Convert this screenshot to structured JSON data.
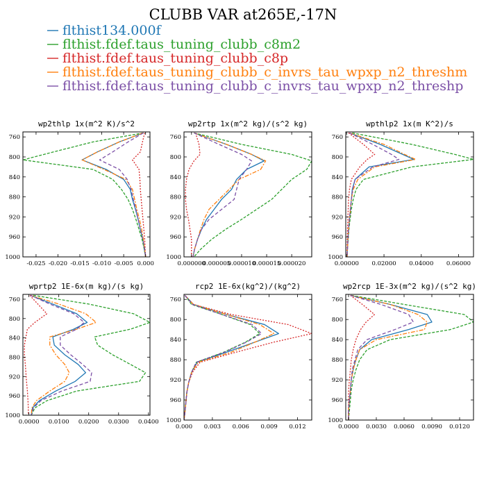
{
  "figure": {
    "title": "CLUBB VAR at265E,-17N"
  },
  "legend": [
    {
      "name": "flthist134.000f",
      "color": "#1f77b4"
    },
    {
      "name": "flthist.fdef.taus_tuning_clubb_c8m2",
      "color": "#2ca02c"
    },
    {
      "name": "flthist.fdef.taus_tuning_clubb_c8p",
      "color": "#d62728"
    },
    {
      "name": "flthist.fdef.taus_tuning_clubb_c_invrs_tau_wpxp_n2_threshm",
      "color": "#ff7f0e"
    },
    {
      "name": "flthist.fdef.taus_tuning_clubb_c_invrs_tau_wpxp_n2_threshp",
      "color": "#7b4fa6"
    }
  ],
  "chart_data": [
    {
      "type": "line",
      "title": "wp2thlp  1x(m^2 K)/s^2",
      "xlim": [
        -0.028,
        0.001
      ],
      "xticks": [
        -0.025,
        -0.02,
        -0.015,
        -0.01,
        -0.005,
        0.0
      ],
      "xtick_labels": [
        "-0.025",
        "-0.020",
        "-0.015",
        "-0.010",
        "-0.005",
        "0.000"
      ],
      "ylim": [
        1000,
        750
      ],
      "yticks": [
        760,
        800,
        840,
        880,
        920,
        960,
        1000
      ],
      "y": [
        752,
        770,
        790,
        806,
        825,
        845,
        865,
        885,
        905,
        925,
        945,
        965,
        985,
        1000
      ],
      "series": [
        {
          "values": [
            -0.0005,
            -0.006,
            -0.011,
            -0.0145,
            -0.009,
            -0.005,
            -0.0035,
            -0.003,
            -0.0023,
            -0.0017,
            -0.0012,
            -0.0006,
            -0.0003,
            0.0
          ]
        },
        {
          "values": [
            -0.0005,
            -0.012,
            -0.021,
            -0.028,
            -0.012,
            -0.0075,
            -0.0055,
            -0.004,
            -0.003,
            -0.0022,
            -0.0015,
            -0.0008,
            -0.0003,
            0.0
          ]
        },
        {
          "values": [
            -0.0002,
            -0.0007,
            -0.0012,
            -0.003,
            -0.0015,
            -0.0013,
            -0.0012,
            -0.001,
            -0.0008,
            -0.0006,
            -0.0004,
            -0.0002,
            -0.0001,
            0.0
          ]
        },
        {
          "values": [
            -0.0006,
            -0.006,
            -0.011,
            -0.0145,
            -0.0095,
            -0.0045,
            -0.003,
            -0.0025,
            -0.002,
            -0.0014,
            -0.0009,
            -0.0005,
            -0.0002,
            0.0
          ]
        },
        {
          "values": [
            -0.0005,
            -0.004,
            -0.0075,
            -0.0105,
            -0.006,
            -0.0042,
            -0.0033,
            -0.0028,
            -0.0022,
            -0.0017,
            -0.0012,
            -0.0006,
            -0.0002,
            0.0
          ]
        }
      ]
    },
    {
      "type": "line",
      "title": "wp2rtp  1x(m^2 kg)/(s^2 kg)",
      "xlim": [
        -1.5e-06,
        2.4e-05
      ],
      "xticks": [
        0.0,
        5e-06,
        1e-05,
        1.5e-05,
        2e-05
      ],
      "xtick_labels": [
        "0.000000",
        "0.000005",
        "0.000010",
        "0.000015",
        "0.000020"
      ],
      "ylim": [
        1000,
        750
      ],
      "yticks": [
        760,
        800,
        840,
        880,
        920,
        960,
        1000
      ],
      "y": [
        752,
        775,
        795,
        808,
        825,
        845,
        865,
        885,
        905,
        925,
        945,
        965,
        985,
        1000
      ],
      "series": [
        {
          "values": [
            5e-07,
            7e-06,
            1.2e-05,
            1.45e-05,
            1.1e-05,
            9e-06,
            8e-06,
            6e-06,
            4.5e-06,
            3e-06,
            2e-06,
            1.2e-06,
            6e-07,
            3e-07
          ]
        },
        {
          "values": [
            5e-07,
            1e-05,
            2e-05,
            2.4e-05,
            2.3e-05,
            2e-05,
            1.8e-05,
            1.6e-05,
            1.3e-05,
            1e-05,
            6.8e-06,
            4e-06,
            1.8e-06,
            5e-07
          ]
        },
        {
          "values": [
            8e-07,
            1.5e-06,
            1.7e-06,
            5e-07,
            -5e-07,
            -1e-06,
            -1.2e-06,
            -1.2e-06,
            -1e-06,
            -6e-07,
            -3e-07,
            0.0,
            0.0,
            0.0
          ]
        },
        {
          "values": [
            5e-07,
            7e-06,
            1.2e-05,
            1.48e-05,
            1.38e-05,
            9.5e-06,
            7.5e-06,
            5.5e-06,
            3.5e-06,
            2.5e-06,
            1.8e-06,
            1.2e-06,
            6e-07,
            3e-07
          ]
        },
        {
          "values": [
            5e-07,
            5.5e-06,
            1e-05,
            1.2e-05,
            1.1e-05,
            9.5e-06,
            9e-06,
            8.5e-06,
            6e-06,
            3.5e-06,
            2e-06,
            1.2e-06,
            6e-07,
            3e-07
          ]
        }
      ]
    },
    {
      "type": "line",
      "title": "wpthlp2  1x(m K^2)/s",
      "xlim": [
        -0.0005,
        0.068
      ],
      "xticks": [
        0.0,
        0.02,
        0.04,
        0.06
      ],
      "xtick_labels": [
        "0.00000",
        "0.02000",
        "0.04000",
        "0.06000"
      ],
      "ylim": [
        1000,
        750
      ],
      "yticks": [
        760,
        800,
        840,
        880,
        920,
        960,
        1000
      ],
      "y": [
        752,
        775,
        795,
        805,
        820,
        845,
        865,
        885,
        905,
        925,
        945,
        965,
        985,
        1000
      ],
      "series": [
        {
          "values": [
            0.0015,
            0.018,
            0.03,
            0.036,
            0.012,
            0.0045,
            0.003,
            0.0025,
            0.002,
            0.0015,
            0.001,
            0.0007,
            0.0004,
            0.0002
          ]
        },
        {
          "values": [
            0.003,
            0.035,
            0.058,
            0.068,
            0.035,
            0.009,
            0.005,
            0.0035,
            0.0025,
            0.0018,
            0.0012,
            0.0008,
            0.0004,
            0.0002
          ]
        },
        {
          "values": [
            0.001,
            0.009,
            0.015,
            0.011,
            0.007,
            0.0025,
            0.0015,
            0.001,
            0.0008,
            0.0006,
            0.0004,
            0.0003,
            0.0002,
            0.0001
          ]
        },
        {
          "values": [
            0.0015,
            0.02,
            0.031,
            0.037,
            0.015,
            0.006,
            0.0035,
            0.0025,
            0.002,
            0.0014,
            0.001,
            0.0007,
            0.0004,
            0.0002
          ]
        },
        {
          "values": [
            0.0015,
            0.014,
            0.024,
            0.028,
            0.014,
            0.0045,
            0.0032,
            0.0025,
            0.002,
            0.0014,
            0.001,
            0.0007,
            0.0004,
            0.0002
          ]
        }
      ]
    },
    {
      "type": "line",
      "title": "wprtp2  1E-6x(m kg)/(s kg)",
      "xlim": [
        -0.002,
        0.0405
      ],
      "xticks": [
        0.0,
        0.01,
        0.02,
        0.03,
        0.04
      ],
      "xtick_labels": [
        "0.0000",
        "0.0100",
        "0.0200",
        "0.0300",
        "0.0400"
      ],
      "ylim": [
        1000,
        750
      ],
      "yticks": [
        760,
        800,
        840,
        880,
        920,
        960,
        1000
      ],
      "y": [
        752,
        770,
        790,
        808,
        822,
        838,
        855,
        875,
        895,
        912,
        930,
        950,
        970,
        985,
        1000
      ],
      "series": [
        {
          "values": [
            0.0005,
            0.008,
            0.016,
            0.0195,
            0.015,
            0.008,
            0.0085,
            0.012,
            0.0165,
            0.019,
            0.0155,
            0.009,
            0.0035,
            0.0012,
            0.0008
          ]
        },
        {
          "values": [
            0.0015,
            0.02,
            0.035,
            0.0405,
            0.034,
            0.022,
            0.023,
            0.028,
            0.034,
            0.039,
            0.037,
            0.016,
            0.006,
            0.002,
            0.0008
          ]
        },
        {
          "values": [
            0.0003,
            0.003,
            0.006,
            0.002,
            -0.0005,
            -0.001,
            -0.0015,
            -0.0015,
            -0.0012,
            -0.001,
            -0.0008,
            -0.0005,
            -0.0003,
            -0.0002,
            -0.0002
          ]
        },
        {
          "values": [
            0.0005,
            0.01,
            0.019,
            0.0225,
            0.016,
            0.007,
            0.007,
            0.009,
            0.012,
            0.0135,
            0.012,
            0.007,
            0.0025,
            0.001,
            0.0008
          ]
        },
        {
          "values": [
            0.0005,
            0.007,
            0.015,
            0.0185,
            0.016,
            0.0105,
            0.0105,
            0.014,
            0.018,
            0.021,
            0.0205,
            0.011,
            0.004,
            0.0015,
            0.0008
          ]
        }
      ]
    },
    {
      "type": "line",
      "title": "rcp2  1E-6x(kg^2)/(kg^2)",
      "xlim": [
        0.0,
        0.0135
      ],
      "xticks": [
        0.0,
        0.003,
        0.006,
        0.009,
        0.012
      ],
      "xtick_labels": [
        "0.000",
        "0.003",
        "0.006",
        "0.009",
        "0.012"
      ],
      "ylim": [
        1000,
        750
      ],
      "yticks": [
        760,
        800,
        840,
        880,
        920,
        960,
        1000
      ],
      "y": [
        752,
        770,
        790,
        810,
        828,
        845,
        865,
        885,
        905,
        925,
        945,
        965,
        985,
        1000
      ],
      "series": [
        {
          "values": [
            0.0001,
            0.001,
            0.0045,
            0.0085,
            0.01,
            0.0075,
            0.0045,
            0.0014,
            0.0008,
            0.0005,
            0.0003,
            0.0002,
            0.0001,
            0.0
          ]
        },
        {
          "values": [
            0.0001,
            0.0008,
            0.004,
            0.007,
            0.008,
            0.0065,
            0.0042,
            0.0013,
            0.0008,
            0.0005,
            0.0003,
            0.0002,
            0.0001,
            0.0
          ]
        },
        {
          "values": [
            0.0001,
            0.001,
            0.005,
            0.011,
            0.0135,
            0.0095,
            0.0055,
            0.0017,
            0.0009,
            0.0005,
            0.0003,
            0.0002,
            0.0001,
            0.0
          ]
        },
        {
          "values": [
            0.0001,
            0.001,
            0.0045,
            0.008,
            0.0095,
            0.0075,
            0.005,
            0.0015,
            0.0008,
            0.0005,
            0.0003,
            0.0002,
            0.0001,
            0.0
          ]
        },
        {
          "values": [
            0.0001,
            0.0009,
            0.004,
            0.0072,
            0.0082,
            0.0066,
            0.0043,
            0.0013,
            0.0008,
            0.0005,
            0.0003,
            0.0002,
            0.0001,
            0.0
          ]
        }
      ]
    },
    {
      "type": "line",
      "title": "wp2rcp  1E-3x(m^2 kg)/(s^2 kg)",
      "xlim": [
        -0.0003,
        0.0135
      ],
      "xticks": [
        0.0,
        0.003,
        0.006,
        0.009,
        0.012
      ],
      "xtick_labels": [
        "0.0000",
        "0.0030",
        "0.0060",
        "0.0090",
        "0.0120"
      ],
      "ylim": [
        1000,
        750
      ],
      "yticks": [
        760,
        800,
        840,
        880,
        920,
        960,
        1000
      ],
      "y": [
        752,
        770,
        790,
        805,
        820,
        840,
        860,
        880,
        900,
        920,
        940,
        960,
        980,
        1000
      ],
      "series": [
        {
          "values": [
            0.0002,
            0.0045,
            0.0085,
            0.009,
            0.0065,
            0.0025,
            0.0012,
            0.0008,
            0.0005,
            0.0003,
            0.0002,
            0.0001,
            0.0,
            0.0
          ]
        },
        {
          "values": [
            0.0003,
            0.006,
            0.0125,
            0.0135,
            0.011,
            0.0045,
            0.002,
            0.0012,
            0.0008,
            0.0005,
            0.0003,
            0.0002,
            0.0001,
            0.0
          ]
        },
        {
          "values": [
            0.0002,
            0.0015,
            0.0028,
            0.0019,
            0.0013,
            0.0008,
            0.0005,
            0.0003,
            0.0002,
            0.0001,
            0.0,
            0.0,
            0.0,
            0.0
          ]
        },
        {
          "values": [
            0.0002,
            0.0045,
            0.0075,
            0.0085,
            0.0082,
            0.003,
            0.0012,
            0.0008,
            0.0005,
            0.0003,
            0.0002,
            0.0001,
            0.0,
            0.0
          ]
        },
        {
          "values": [
            0.0002,
            0.0035,
            0.0065,
            0.007,
            0.005,
            0.002,
            0.001,
            0.0007,
            0.0004,
            0.0003,
            0.0002,
            0.0001,
            0.0,
            0.0
          ]
        }
      ]
    }
  ]
}
